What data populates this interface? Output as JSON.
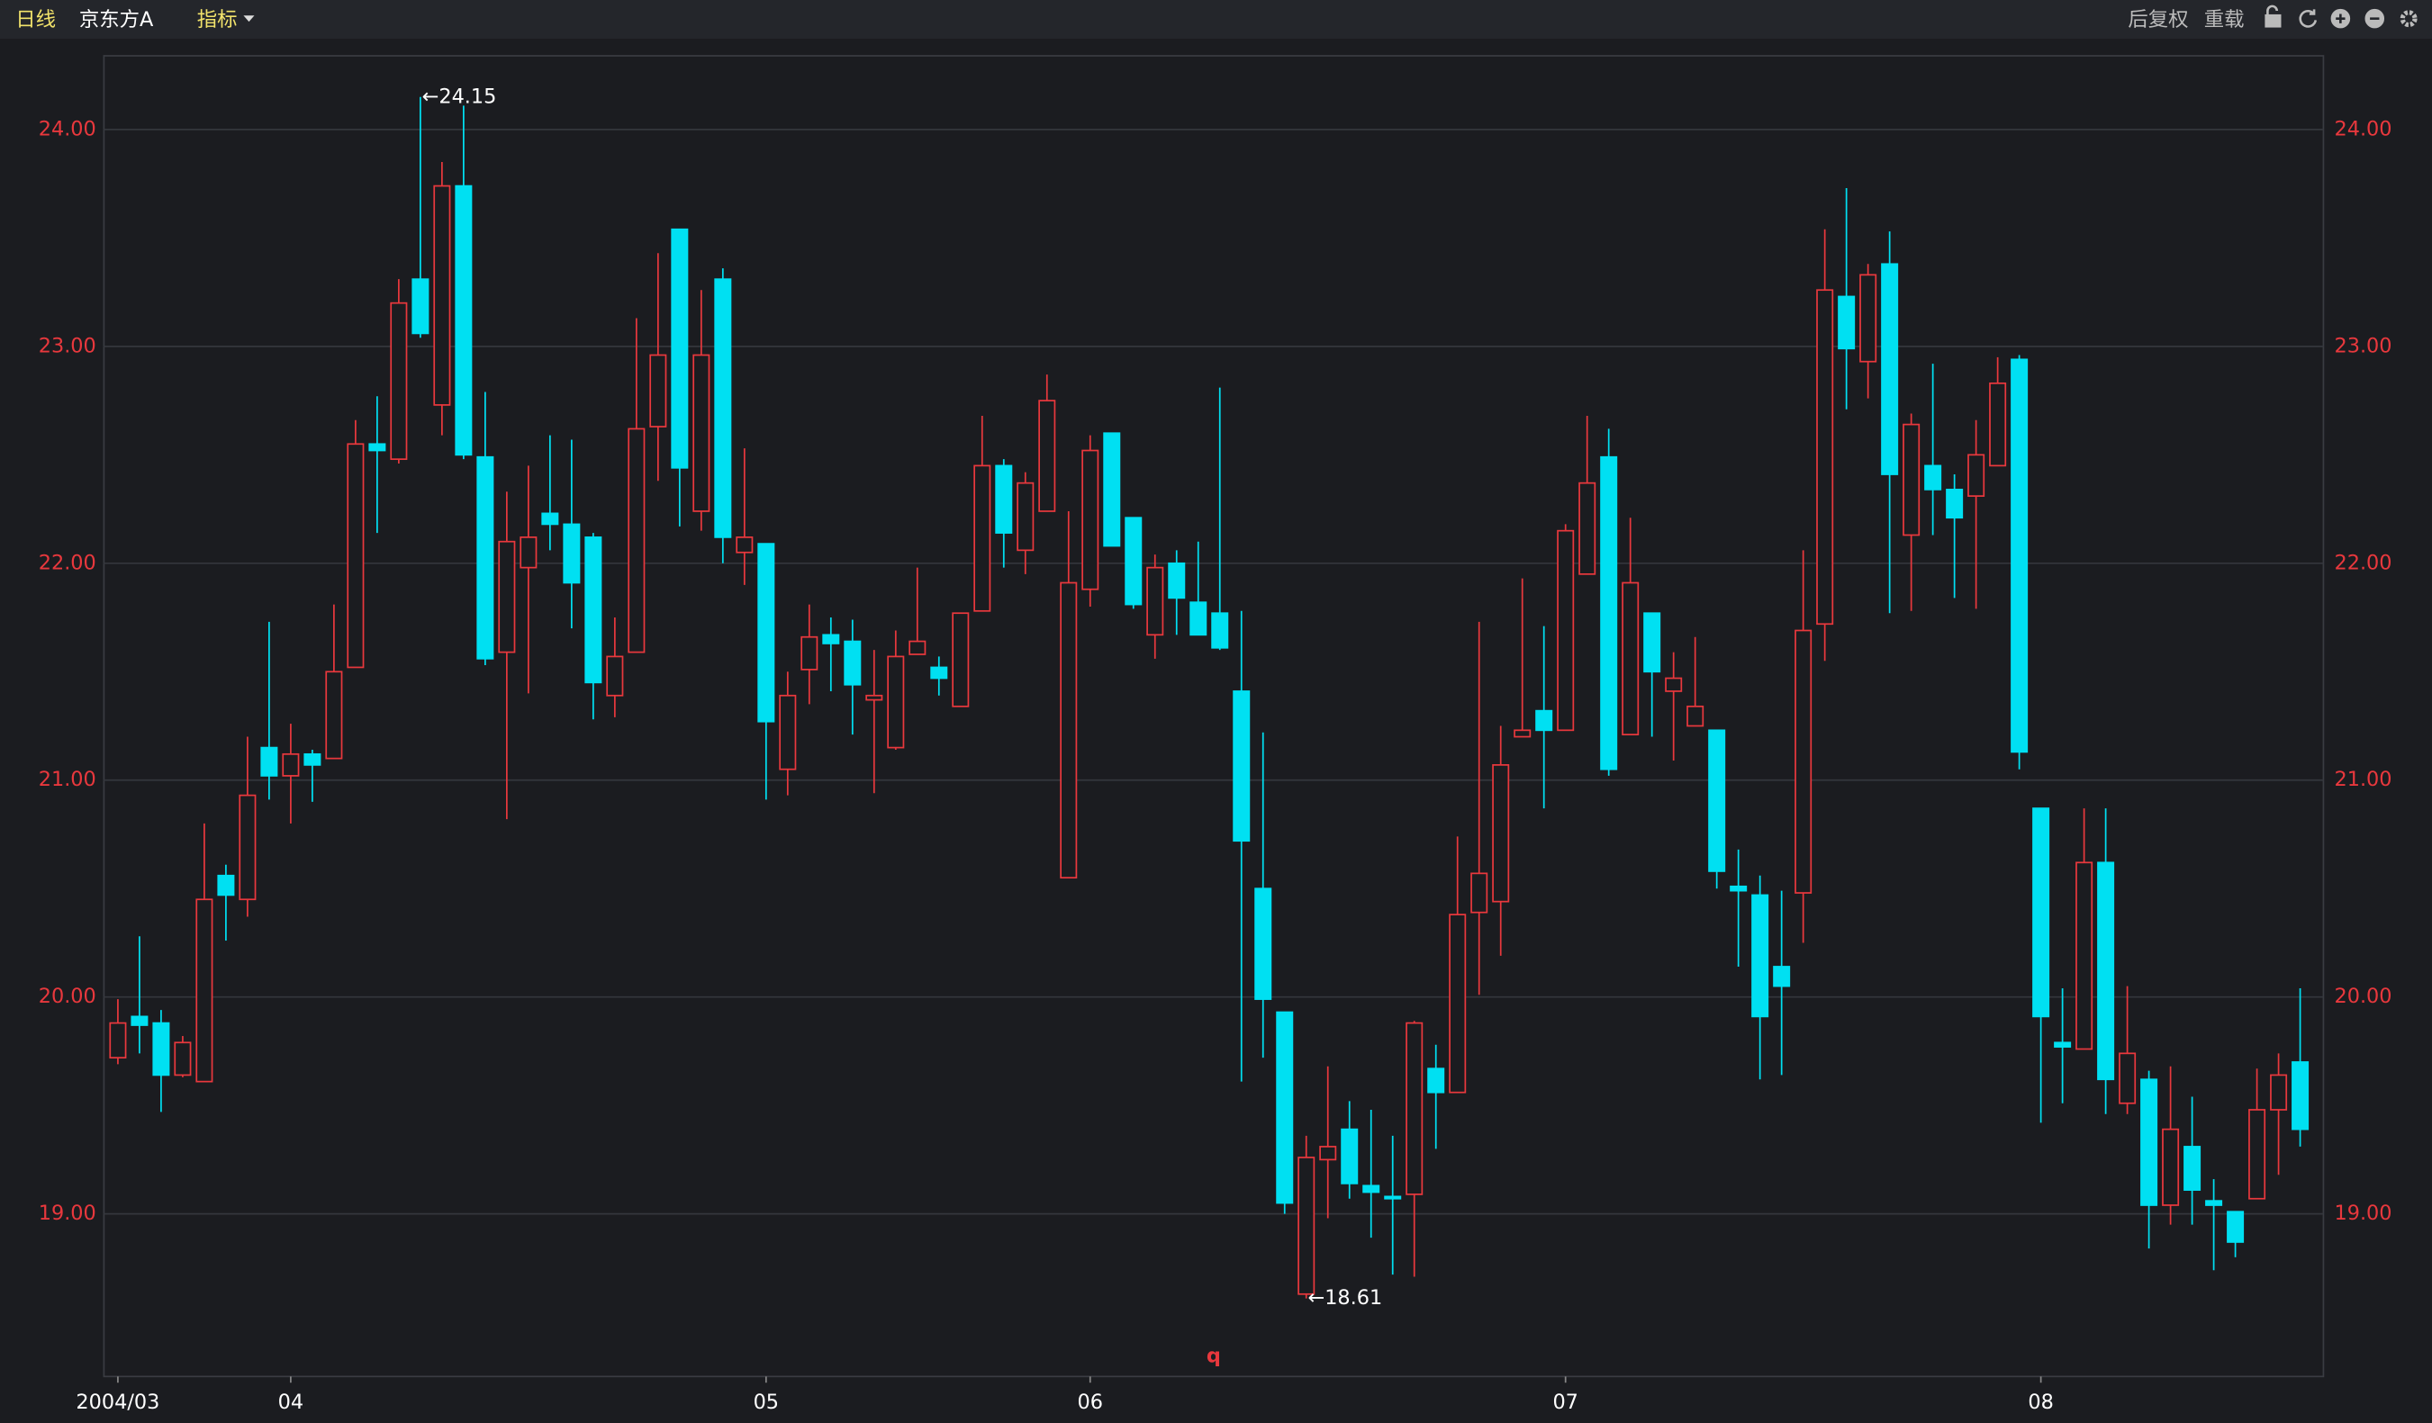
{
  "toolbar": {
    "period": "日线",
    "name": "京东方A",
    "indicator": "指标",
    "adjust": "后复权",
    "reload": "重载"
  },
  "chart_data": {
    "type": "candlestick",
    "categories": [
      "2004/03",
      null,
      null,
      null,
      null,
      null,
      null,
      null,
      "04",
      null,
      null,
      null,
      null,
      null,
      null,
      null,
      null,
      null,
      null,
      null,
      null,
      null,
      null,
      null,
      null,
      null,
      null,
      null,
      null,
      null,
      "05",
      null,
      null,
      null,
      null,
      null,
      null,
      null,
      null,
      null,
      null,
      null,
      null,
      null,
      null,
      "06",
      null,
      null,
      null,
      null,
      null,
      null,
      null,
      null,
      null,
      null,
      null,
      null,
      null,
      null,
      null,
      null,
      null,
      null,
      null,
      null,
      null,
      "07",
      null,
      null,
      null,
      null,
      null,
      null,
      null,
      null,
      null,
      null,
      null,
      null,
      null,
      null,
      null,
      null,
      null,
      null,
      null,
      null,
      null,
      "08",
      null,
      null,
      null,
      null,
      null,
      null,
      null,
      null,
      null,
      null,
      null,
      null
    ],
    "open": [
      19.72,
      19.91,
      19.88,
      19.64,
      19.61,
      20.56,
      20.45,
      21.15,
      21.02,
      21.12,
      21.1,
      21.52,
      22.55,
      22.48,
      23.31,
      22.73,
      23.74,
      22.49,
      21.59,
      21.98,
      22.23,
      22.18,
      22.12,
      21.39,
      21.59,
      22.63,
      23.54,
      22.24,
      23.31,
      22.05,
      22.09,
      21.05,
      21.51,
      21.67,
      21.64,
      21.37,
      21.15,
      21.58,
      21.52,
      21.34,
      21.78,
      22.45,
      22.06,
      22.24,
      20.55,
      21.88,
      22.6,
      22.21,
      21.67,
      22.0,
      21.82,
      21.77,
      21.41,
      20.5,
      19.93,
      18.63,
      19.25,
      19.39,
      19.13,
      19.08,
      19.09,
      19.67,
      19.56,
      20.39,
      20.44,
      21.2,
      21.32,
      21.23,
      21.95,
      22.49,
      21.21,
      21.77,
      21.41,
      21.25,
      21.23,
      20.51,
      20.47,
      20.14,
      20.48,
      21.72,
      23.23,
      22.93,
      23.38,
      22.13,
      22.45,
      22.34,
      22.31,
      22.45,
      22.94,
      20.87,
      19.79,
      19.76,
      20.62,
      19.51,
      19.62,
      19.04,
      19.31,
      19.06,
      19.01,
      19.07,
      19.48,
      19.7
    ],
    "high": [
      19.99,
      20.28,
      19.94,
      19.82,
      20.8,
      20.61,
      21.2,
      21.73,
      21.26,
      21.14,
      21.81,
      22.66,
      22.77,
      23.31,
      24.15,
      23.85,
      24.11,
      22.79,
      22.33,
      22.45,
      22.59,
      22.57,
      22.14,
      21.75,
      23.13,
      23.43,
      23.54,
      23.26,
      23.36,
      22.53,
      22.09,
      21.5,
      21.81,
      21.75,
      21.74,
      21.6,
      21.69,
      21.98,
      21.57,
      21.77,
      22.68,
      22.48,
      22.42,
      22.87,
      22.24,
      22.59,
      22.6,
      22.21,
      22.04,
      22.06,
      22.1,
      22.81,
      21.78,
      21.22,
      19.93,
      19.36,
      19.68,
      19.52,
      19.48,
      19.36,
      19.89,
      19.78,
      20.74,
      21.73,
      21.25,
      21.93,
      21.71,
      22.18,
      22.68,
      22.62,
      22.21,
      21.77,
      21.59,
      21.66,
      21.23,
      20.68,
      20.56,
      20.49,
      22.06,
      23.54,
      23.73,
      23.38,
      23.53,
      22.69,
      22.92,
      22.41,
      22.66,
      22.95,
      22.96,
      20.87,
      20.04,
      20.87,
      20.87,
      20.05,
      19.66,
      19.68,
      19.54,
      19.16,
      19.01,
      19.67,
      19.74,
      20.04
    ],
    "low": [
      19.69,
      19.74,
      19.47,
      19.63,
      19.61,
      20.26,
      20.37,
      20.91,
      20.8,
      20.9,
      21.1,
      21.52,
      22.14,
      22.46,
      23.04,
      22.59,
      22.48,
      21.53,
      20.82,
      21.4,
      22.06,
      21.7,
      21.28,
      21.29,
      21.59,
      22.38,
      22.17,
      22.15,
      22.0,
      21.9,
      20.91,
      20.93,
      21.35,
      21.41,
      21.21,
      20.94,
      21.14,
      21.58,
      21.39,
      21.34,
      21.78,
      21.98,
      21.95,
      22.24,
      20.55,
      21.8,
      22.08,
      21.79,
      21.56,
      21.67,
      21.67,
      21.6,
      19.61,
      19.72,
      19.0,
      18.61,
      18.98,
      19.07,
      18.89,
      18.72,
      18.71,
      19.3,
      19.56,
      20.01,
      20.19,
      21.2,
      20.87,
      21.23,
      21.95,
      21.02,
      21.21,
      21.2,
      21.09,
      21.25,
      20.5,
      20.14,
      19.62,
      19.64,
      20.25,
      21.55,
      22.71,
      22.76,
      21.77,
      21.78,
      22.13,
      21.84,
      21.79,
      22.45,
      21.05,
      19.42,
      19.51,
      19.76,
      19.46,
      19.46,
      18.84,
      18.95,
      18.95,
      18.74,
      18.8,
      19.07,
      19.18,
      19.31
    ],
    "close": [
      19.88,
      19.87,
      19.64,
      19.79,
      20.45,
      20.47,
      20.93,
      21.02,
      21.12,
      21.07,
      21.5,
      22.55,
      22.52,
      23.2,
      23.06,
      23.74,
      22.5,
      21.56,
      22.1,
      22.12,
      22.18,
      21.91,
      21.45,
      21.57,
      22.62,
      22.96,
      22.44,
      22.96,
      22.12,
      22.12,
      21.27,
      21.39,
      21.66,
      21.63,
      21.44,
      21.39,
      21.57,
      21.64,
      21.47,
      21.77,
      22.45,
      22.14,
      22.37,
      22.75,
      21.91,
      22.52,
      22.08,
      21.81,
      21.98,
      21.84,
      21.67,
      21.61,
      20.72,
      19.99,
      19.05,
      19.26,
      19.31,
      19.14,
      19.1,
      19.07,
      19.88,
      19.56,
      20.38,
      20.57,
      21.07,
      21.23,
      21.23,
      22.15,
      22.37,
      21.05,
      21.91,
      21.5,
      21.47,
      21.34,
      20.58,
      20.49,
      19.91,
      20.05,
      21.69,
      23.26,
      22.99,
      23.33,
      22.41,
      22.64,
      22.34,
      22.21,
      22.5,
      22.83,
      21.13,
      19.91,
      19.77,
      20.62,
      19.62,
      19.74,
      19.04,
      19.39,
      19.11,
      19.04,
      18.87,
      19.48,
      19.64,
      19.39
    ],
    "up_color": "#e8383d",
    "down_color": "#00e0f2",
    "ylim": [
      18.25,
      24.34
    ],
    "yticks": [
      {
        "value": 19,
        "label": "19.00"
      },
      {
        "value": 20,
        "label": "20.00"
      },
      {
        "value": 21,
        "label": "21.00"
      },
      {
        "value": 22,
        "label": "22.00"
      },
      {
        "value": 23,
        "label": "23.00"
      },
      {
        "value": 24,
        "label": "24.00"
      }
    ],
    "grid": true,
    "annotations": [
      {
        "text": "←24.15",
        "value": 24.15,
        "at": "high"
      },
      {
        "text": "←18.61",
        "value": 18.61,
        "at": "low"
      }
    ],
    "marker": "q"
  }
}
